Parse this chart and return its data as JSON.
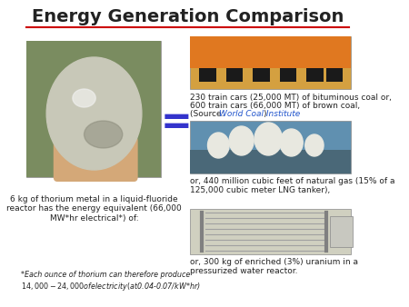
{
  "title": "Energy Generation Comparison",
  "title_fontsize": 14,
  "title_fontweight": "bold",
  "bg_color": "#ffffff",
  "line_color": "#cc0000",
  "equal_sign": "=",
  "equal_color": "#3333cc",
  "left_caption": "6 kg of thorium metal in a liquid-fluoride\nreactor has the energy equivalent (66,000\nMW*hr electrical*) of:",
  "bottom_left_note": "*Each ounce of thorium can therefore produce\n$14,000-24,000 of electricity (at $0.04-0.07/kW*hr)",
  "coal_text": "230 train cars (25,000 MT) of bituminous coal or,\n600 train cars (66,000 MT) of brown coal,\n(Source: World Coal Institute)",
  "source_link": "World Coal Institute",
  "gas_text": "or, 440 million cubic feet of natural gas (15% of a\n125,000 cubic meter LNG tanker),",
  "uranium_text": "or, 300 kg of enriched (3%) uranium in a\npressurized water reactor.",
  "coal_img_color": "#c8a060",
  "gas_img_color": "#6090b0",
  "uranium_img_color": "#d0d0c0",
  "thorium_img_color": "#b0b0a0",
  "text_color": "#222222",
  "text_fontsize": 6.5,
  "small_fontsize": 5.8
}
